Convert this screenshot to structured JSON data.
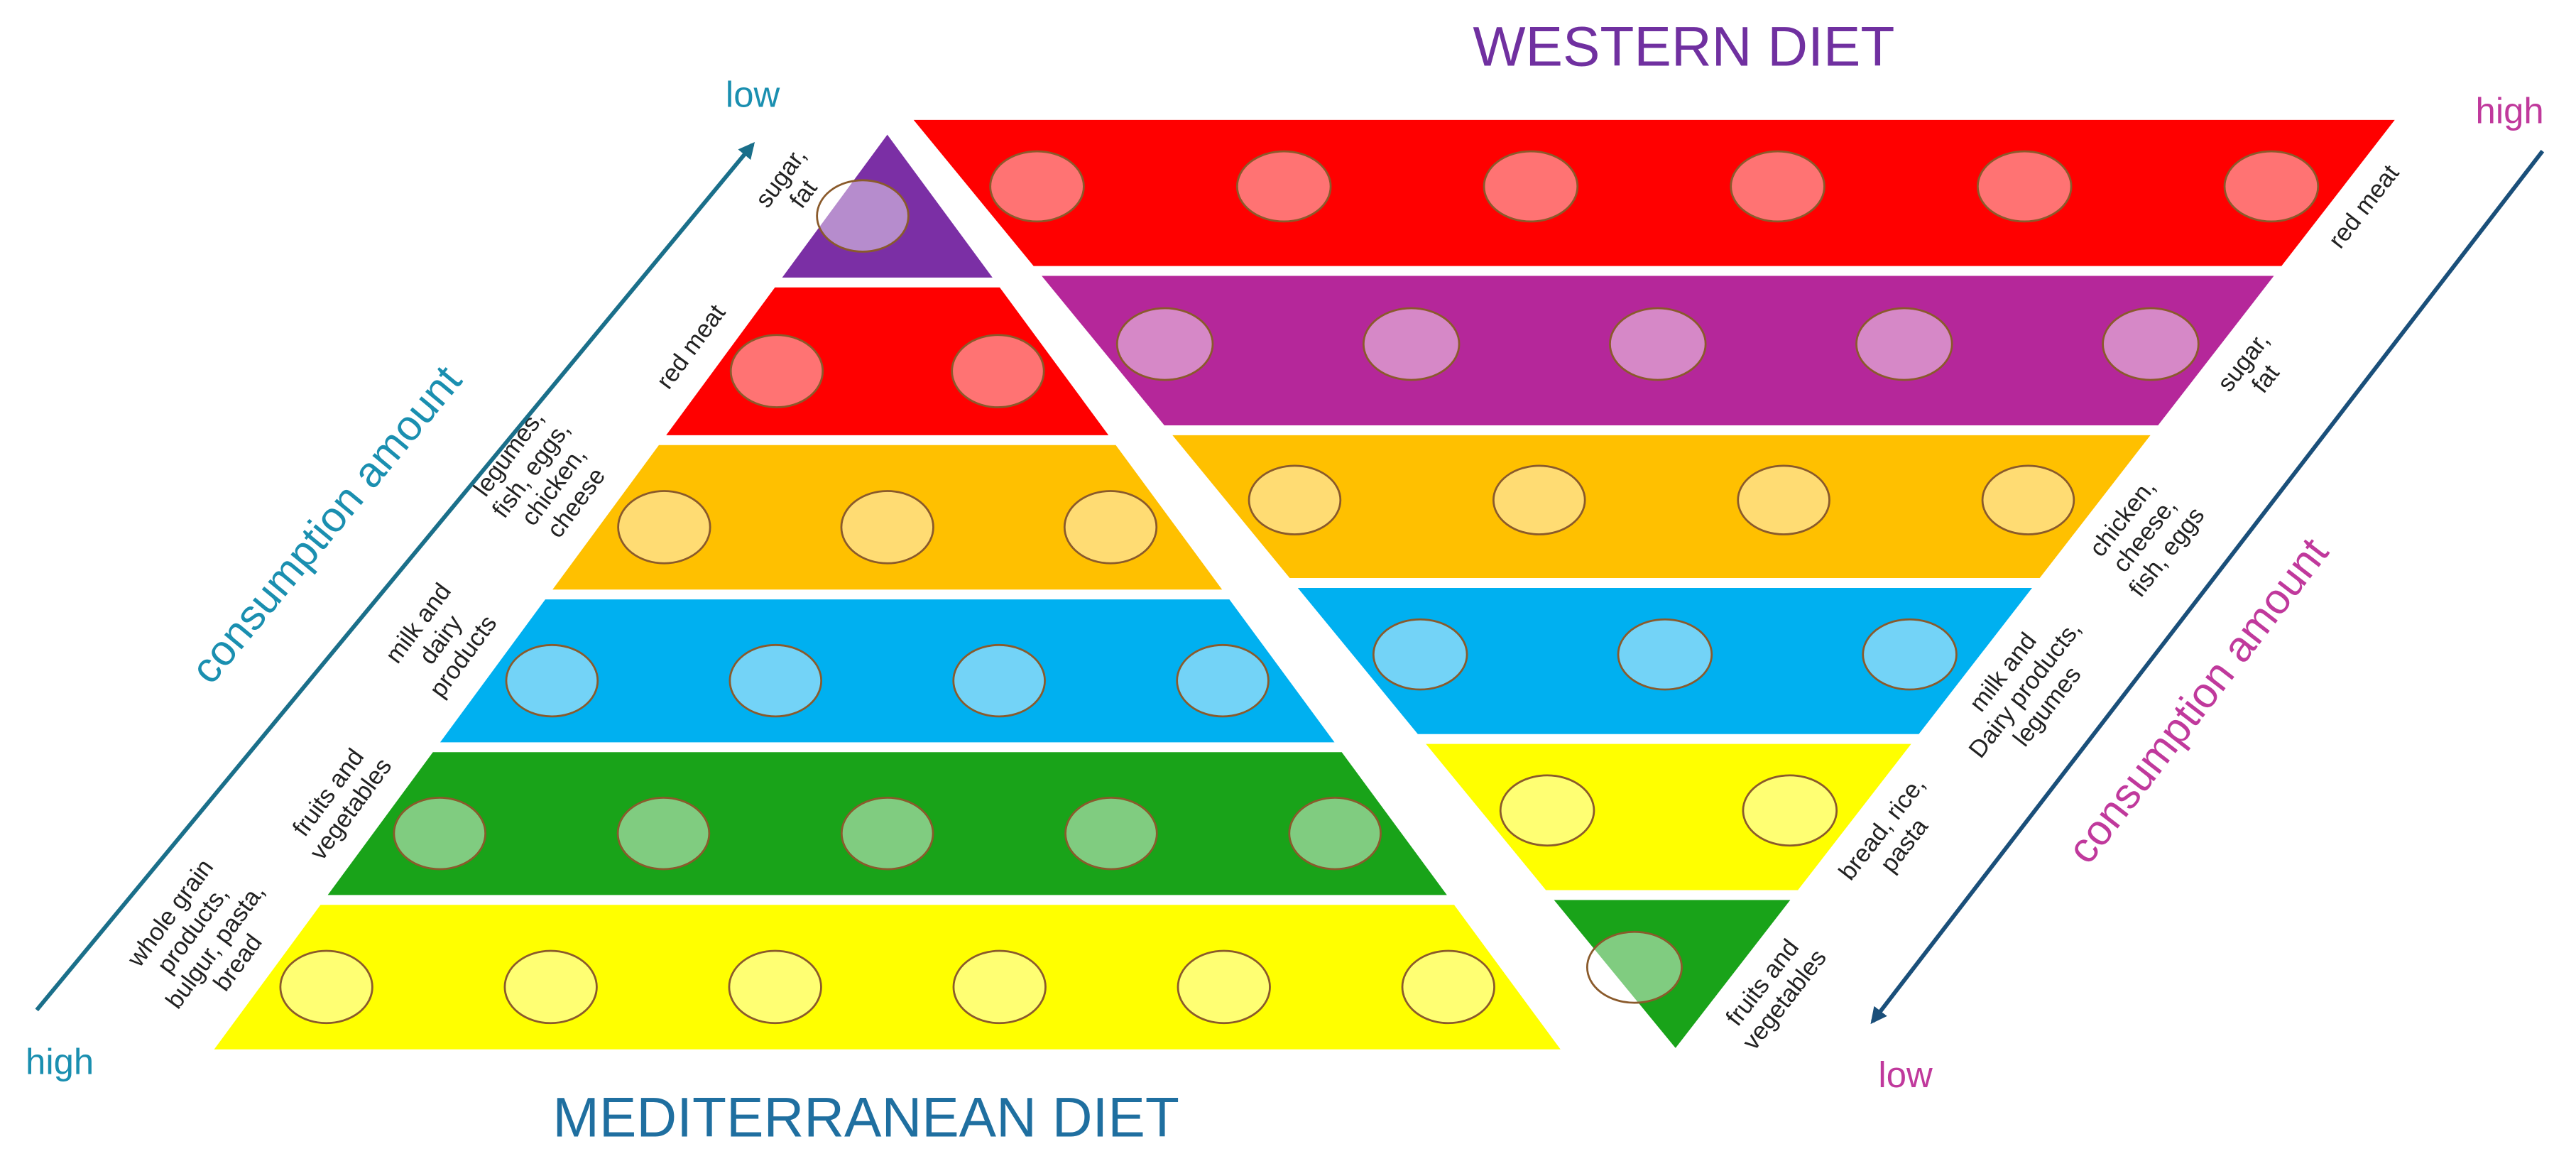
{
  "mediterranean": {
    "title": "MEDITERRANEAN DIET",
    "axis": {
      "label": "consumption amount",
      "top": "low",
      "bottom": "high"
    },
    "levels": [
      [
        "sugar,",
        "fat"
      ],
      [
        "red meat"
      ],
      [
        "legumes,",
        "fish, eggs,",
        "chicken,",
        "cheese"
      ],
      [
        "milk and",
        "dairy",
        "products"
      ],
      [
        "fruits and",
        "vegetables"
      ],
      [
        "whole grain",
        "products,",
        "bulgur, pasta,",
        "bread"
      ]
    ]
  },
  "western": {
    "title": "WESTERN DIET",
    "axis": {
      "label": "consumption amount",
      "top": "high",
      "bottom": "low"
    },
    "levels": [
      [
        "red meat"
      ],
      [
        "sugar,",
        "fat"
      ],
      [
        "chicken,",
        "cheese,",
        "fish, eggs"
      ],
      [
        "milk and",
        "Dairy products,",
        "legumes"
      ],
      [
        "bread, rice,",
        "pasta"
      ],
      [
        "fruits and",
        "vegetables"
      ]
    ]
  }
}
